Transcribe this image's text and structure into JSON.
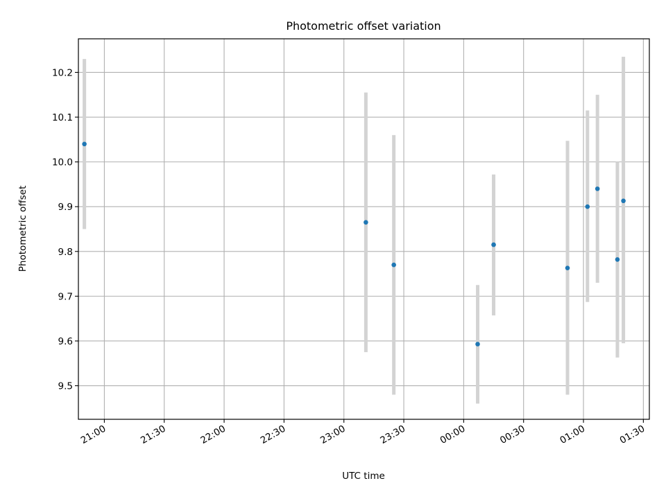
{
  "chart_data": {
    "type": "scatter",
    "title": "Photometric offset variation",
    "xlabel": "UTC time",
    "ylabel": "Photometric offset",
    "x_ticks": [
      "21:00",
      "21:30",
      "22:00",
      "22:30",
      "23:00",
      "23:30",
      "00:00",
      "00:30",
      "01:00",
      "01:30"
    ],
    "x_tick_times": [
      "2000-01-01T21:00",
      "2000-01-01T21:30",
      "2000-01-01T22:00",
      "2000-01-01T22:30",
      "2000-01-01T23:00",
      "2000-01-01T23:30",
      "2000-01-02T00:00",
      "2000-01-02T00:30",
      "2000-01-02T01:00",
      "2000-01-02T01:30"
    ],
    "y_ticks": [
      9.5,
      9.6,
      9.7,
      9.8,
      9.9,
      10.0,
      10.1,
      10.2
    ],
    "y_tick_labels": [
      "9.5",
      "9.6",
      "9.7",
      "9.8",
      "9.9",
      "10.0",
      "10.1",
      "10.2"
    ],
    "xlim": [
      "2000-01-01T20:47",
      "2000-01-02T01:33"
    ],
    "ylim": [
      9.425,
      10.275
    ],
    "grid": true,
    "point_color": "#1f77b4",
    "errorbar_color": "#d3d3d3",
    "points": [
      {
        "t": "2000-01-01T20:50",
        "y": 10.04,
        "low": 9.85,
        "high": 10.23
      },
      {
        "t": "2000-01-01T23:11",
        "y": 9.865,
        "low": 9.575,
        "high": 10.155
      },
      {
        "t": "2000-01-01T23:25",
        "y": 9.77,
        "low": 9.48,
        "high": 10.06
      },
      {
        "t": "2000-01-02T00:07",
        "y": 9.593,
        "low": 9.46,
        "high": 9.725
      },
      {
        "t": "2000-01-02T00:15",
        "y": 9.815,
        "low": 9.657,
        "high": 9.972
      },
      {
        "t": "2000-01-02T00:52",
        "y": 9.763,
        "low": 9.48,
        "high": 10.047
      },
      {
        "t": "2000-01-02T01:02",
        "y": 9.9,
        "low": 9.687,
        "high": 10.115
      },
      {
        "t": "2000-01-02T01:07",
        "y": 9.94,
        "low": 9.73,
        "high": 10.15
      },
      {
        "t": "2000-01-02T01:17",
        "y": 9.782,
        "low": 9.563,
        "high": 10.0
      },
      {
        "t": "2000-01-02T01:20",
        "y": 9.913,
        "low": 9.595,
        "high": 10.235
      }
    ]
  }
}
